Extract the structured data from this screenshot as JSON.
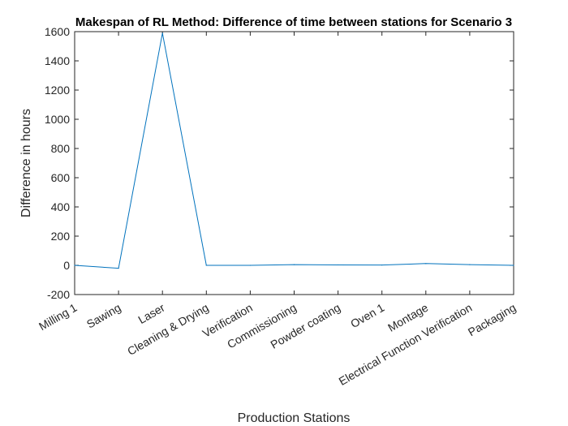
{
  "chart_data": {
    "type": "line",
    "title": "Makespan of RL Method: Difference of time between stations for Scenario 3",
    "xlabel": "Production Stations",
    "ylabel": "Difference in hours",
    "categories": [
      "Milling 1",
      "Sawing",
      "Laser",
      "Cleaning & Drying",
      "Verification",
      "Commissioning",
      "Powder coating",
      "Oven 1",
      "Montage",
      "Electrical Function Verification",
      "Packaging"
    ],
    "series": [
      {
        "values": [
          0,
          -20,
          1590,
          0,
          0,
          5,
          3,
          2,
          12,
          5,
          0
        ]
      }
    ],
    "ylim": [
      -200,
      1600
    ],
    "yticks": [
      "-200",
      "0",
      "200",
      "400",
      "600",
      "800",
      "1000",
      "1200",
      "1400",
      "1600"
    ],
    "grid": false,
    "line_color": "#0072BD"
  }
}
